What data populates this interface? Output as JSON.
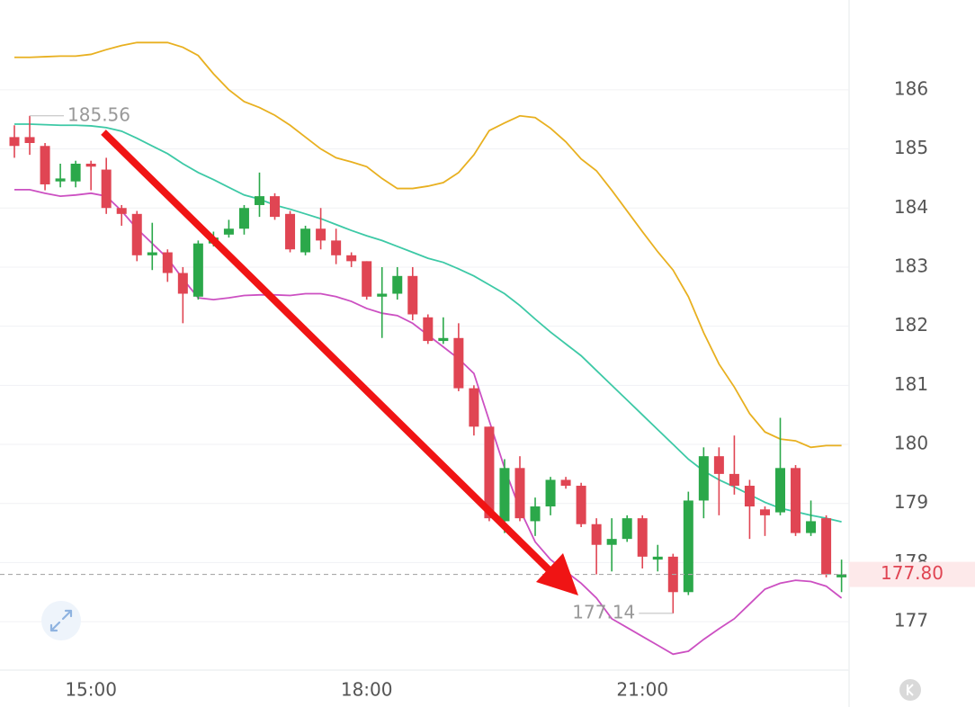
{
  "chart_data": {
    "type": "candlestick",
    "categories": [
      null,
      null,
      null,
      null,
      null,
      "15:00",
      null,
      null,
      null,
      null,
      null,
      null,
      null,
      null,
      null,
      null,
      null,
      null,
      null,
      null,
      null,
      null,
      null,
      "18:00",
      null,
      null,
      null,
      null,
      null,
      null,
      null,
      null,
      null,
      null,
      null,
      null,
      null,
      null,
      null,
      null,
      null,
      "21:00",
      null,
      null,
      null,
      null,
      null,
      null,
      null,
      null,
      null,
      null,
      null,
      null,
      null
    ],
    "open": [
      185.2,
      185.2,
      185.05,
      184.45,
      184.45,
      184.75,
      184.65,
      184.0,
      183.9,
      183.2,
      183.25,
      182.9,
      182.5,
      183.4,
      183.55,
      183.65,
      184.05,
      184.2,
      183.9,
      183.25,
      183.65,
      183.45,
      183.2,
      183.1,
      182.5,
      182.55,
      182.85,
      182.15,
      181.75,
      181.8,
      180.95,
      180.3,
      178.7,
      179.6,
      178.7,
      178.95,
      179.4,
      179.3,
      178.65,
      178.3,
      178.4,
      178.75,
      178.05,
      178.1,
      177.5,
      179.05,
      179.8,
      179.5,
      179.3,
      178.9,
      178.85,
      179.6,
      178.5,
      178.75,
      177.75
    ],
    "high": [
      185.4,
      185.56,
      185.1,
      184.75,
      184.8,
      184.8,
      184.85,
      184.05,
      183.95,
      183.75,
      183.3,
      183.0,
      183.45,
      183.6,
      183.8,
      184.05,
      184.6,
      184.25,
      183.95,
      183.7,
      184.0,
      183.65,
      183.25,
      183.1,
      183.0,
      183.0,
      183.0,
      182.2,
      182.15,
      182.05,
      181.0,
      180.3,
      179.75,
      179.8,
      179.1,
      179.45,
      179.45,
      179.35,
      178.75,
      178.75,
      178.8,
      178.8,
      178.3,
      178.15,
      179.2,
      179.95,
      179.95,
      180.15,
      179.4,
      178.95,
      180.45,
      179.65,
      179.05,
      178.8,
      178.05
    ],
    "low": [
      184.85,
      184.9,
      184.3,
      184.35,
      184.35,
      184.3,
      183.9,
      183.7,
      183.1,
      182.95,
      182.75,
      182.05,
      182.45,
      183.35,
      183.5,
      183.55,
      183.85,
      183.8,
      183.25,
      183.2,
      183.3,
      183.05,
      183.0,
      182.45,
      181.8,
      182.45,
      182.1,
      181.7,
      181.7,
      180.9,
      180.15,
      178.7,
      178.5,
      178.7,
      178.45,
      178.8,
      179.25,
      178.6,
      177.8,
      177.85,
      178.35,
      177.9,
      177.85,
      177.14,
      177.45,
      178.75,
      178.8,
      179.15,
      178.4,
      178.45,
      178.8,
      178.45,
      178.45,
      177.75,
      177.5
    ],
    "close": [
      185.05,
      185.1,
      184.4,
      184.5,
      184.75,
      184.7,
      184.0,
      183.9,
      183.2,
      183.25,
      182.9,
      182.55,
      183.4,
      183.5,
      183.65,
      184.0,
      184.2,
      183.85,
      183.3,
      183.65,
      183.45,
      183.2,
      183.1,
      182.5,
      182.55,
      182.85,
      182.2,
      181.75,
      181.8,
      180.95,
      180.3,
      178.75,
      179.6,
      178.75,
      178.95,
      179.4,
      179.3,
      178.65,
      178.3,
      178.4,
      178.75,
      178.1,
      178.1,
      177.5,
      179.05,
      179.8,
      179.5,
      179.3,
      178.95,
      178.8,
      179.6,
      178.5,
      178.7,
      177.8,
      177.8
    ],
    "up_color": "#2ba84a",
    "down_color": "#e04553",
    "lines": [
      {
        "color": "#e8b020",
        "values": [
          186.55,
          186.55,
          186.56,
          186.57,
          186.57,
          186.6,
          186.68,
          186.75,
          186.8,
          186.8,
          186.8,
          186.72,
          186.58,
          186.27,
          186.0,
          185.8,
          185.7,
          185.57,
          185.4,
          185.2,
          185.0,
          184.85,
          184.78,
          184.7,
          184.5,
          184.33,
          184.33,
          184.37,
          184.43,
          184.6,
          184.9,
          185.31,
          185.44,
          185.56,
          185.53,
          185.35,
          185.12,
          184.83,
          184.63,
          184.3,
          183.95,
          183.6,
          183.26,
          182.95,
          182.5,
          181.89,
          181.36,
          180.97,
          180.52,
          180.21,
          180.09,
          180.06,
          179.95,
          179.98,
          179.98
        ]
      },
      {
        "color": "#3dc9a6",
        "values": [
          185.42,
          185.42,
          185.41,
          185.4,
          185.4,
          185.39,
          185.36,
          185.3,
          185.18,
          185.05,
          184.92,
          184.75,
          184.6,
          184.48,
          184.35,
          184.22,
          184.15,
          184.05,
          183.98,
          183.9,
          183.82,
          183.72,
          183.62,
          183.53,
          183.45,
          183.35,
          183.25,
          183.15,
          183.08,
          182.97,
          182.85,
          182.7,
          182.55,
          182.35,
          182.12,
          181.9,
          181.7,
          181.5,
          181.25,
          181.0,
          180.75,
          180.5,
          180.25,
          180.0,
          179.75,
          179.55,
          179.4,
          179.28,
          179.15,
          179.02,
          178.92,
          178.86,
          178.8,
          178.75,
          178.69
        ]
      },
      {
        "color": "#cc50c2",
        "values": [
          184.31,
          184.31,
          184.25,
          184.2,
          184.22,
          184.25,
          184.2,
          183.95,
          183.65,
          183.4,
          183.15,
          182.8,
          182.48,
          182.45,
          182.48,
          182.52,
          182.53,
          182.53,
          182.52,
          182.55,
          182.55,
          182.5,
          182.42,
          182.3,
          182.22,
          182.18,
          182.05,
          181.85,
          181.65,
          181.45,
          181.2,
          180.4,
          179.6,
          178.9,
          178.35,
          178.05,
          177.85,
          177.65,
          177.4,
          177.05,
          176.9,
          176.75,
          176.6,
          176.45,
          176.5,
          176.7,
          176.88,
          177.05,
          177.3,
          177.55,
          177.65,
          177.7,
          177.68,
          177.6,
          177.4
        ]
      }
    ],
    "ylim": [
      176.18,
      187.52
    ],
    "yticks": [
      177,
      178,
      179,
      180,
      181,
      182,
      183,
      184,
      185,
      186
    ],
    "grid": true,
    "high_label": 185.56,
    "low_label": 177.14,
    "last_price": {
      "value": 177.8,
      "label": "177.80"
    }
  }
}
